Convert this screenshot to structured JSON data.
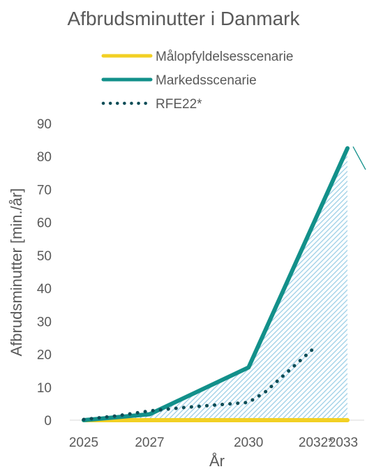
{
  "chart_data": {
    "type": "line",
    "title": "Afbrudsminutter i Danmark",
    "xlabel": "År",
    "ylabel": "Afbrudsminutter [min./år]",
    "ylim": [
      0,
      90
    ],
    "yticks": [
      "0",
      "10",
      "20",
      "30",
      "40",
      "50",
      "60",
      "70",
      "80",
      "90"
    ],
    "xlim": [
      2025,
      2033
    ],
    "xticks": [
      {
        "value": 2025,
        "label": "2025"
      },
      {
        "value": 2027,
        "label": "2027"
      },
      {
        "value": 2030,
        "label": "2030"
      },
      {
        "value": 2032,
        "label": "2032*"
      },
      {
        "value": 2033,
        "label": "2033"
      }
    ],
    "legend_position": "top",
    "series": [
      {
        "name": "Målopfyldelsesscenarie",
        "style": "solid",
        "color": "#F2D024",
        "x": [
          2025,
          2027,
          2030,
          2033
        ],
        "y": [
          0,
          0,
          0,
          0
        ]
      },
      {
        "name": "Markedsscenarie",
        "style": "solid",
        "color": "#12908A",
        "x": [
          2025,
          2027,
          2030,
          2033
        ],
        "y": [
          0,
          1.8,
          16,
          82.5
        ]
      },
      {
        "name": "RFE22*",
        "style": "dotted",
        "color": "#0E4D57",
        "x": [
          2025,
          2026,
          2027,
          2028,
          2029,
          2030,
          2030.5,
          2031,
          2031.5,
          2032
        ],
        "y": [
          0.2,
          1.3,
          2.8,
          3.8,
          4.6,
          5.4,
          8.5,
          13,
          17.5,
          22
        ]
      }
    ],
    "shaded_area": {
      "between": [
        "Målopfyldelsesscenarie",
        "Markedsscenarie"
      ],
      "color": "#9DCFE6",
      "pattern": "diagonal-hatch"
    }
  }
}
